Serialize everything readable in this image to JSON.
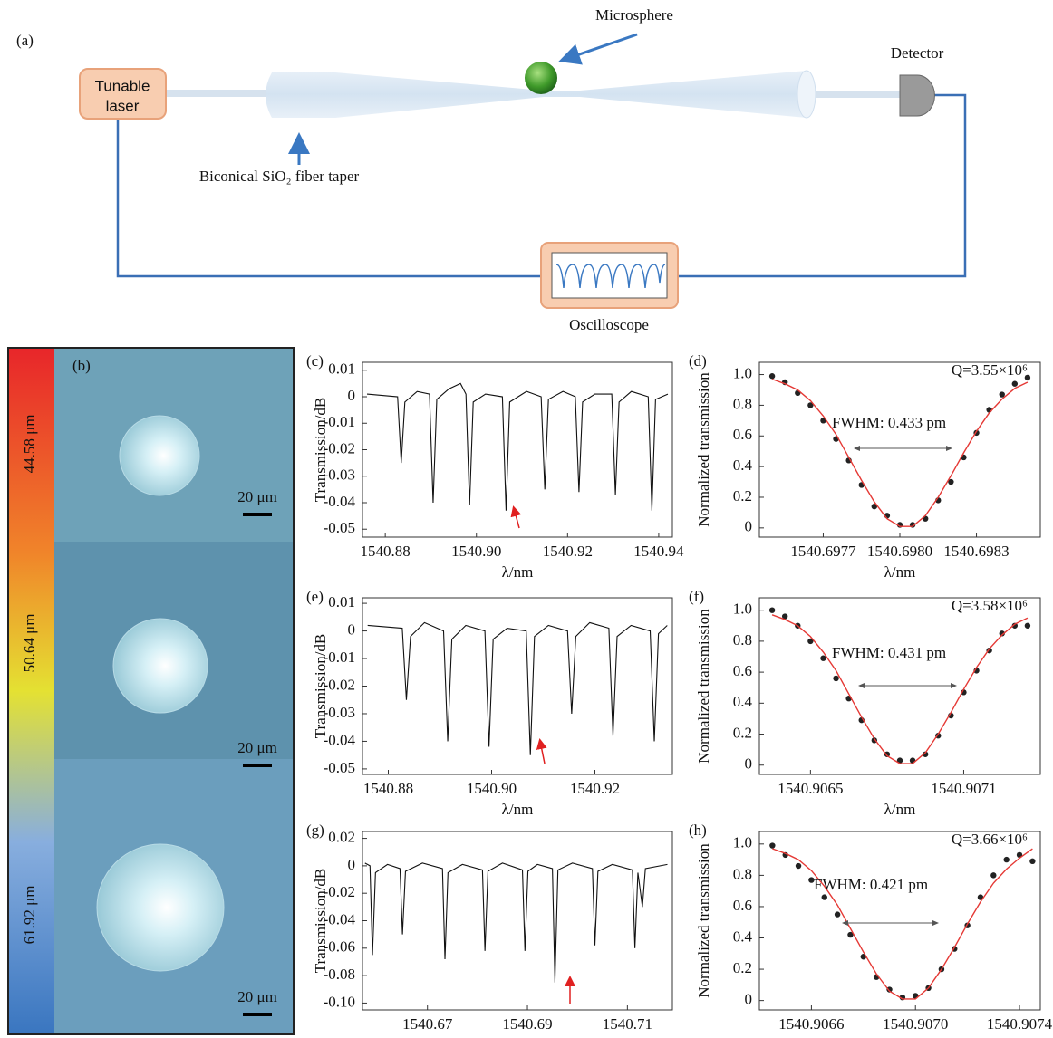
{
  "diagram": {
    "panel_label": "(a)",
    "laser_lines": [
      "Tunable",
      "laser"
    ],
    "microsphere": "Microsphere",
    "detector": "Detector",
    "taper": "Biconical SiO₂ fiber taper",
    "oscilloscope": "Oscilloscope"
  },
  "image_panel": {
    "label": "(b)",
    "diameters": [
      "44.58 μm",
      "50.64 μm",
      "61.92 μm"
    ],
    "scale_bars": [
      "20 μm",
      "20 μm",
      "20 μm"
    ]
  },
  "chart_data": [
    {
      "type": "line",
      "label": "(c)",
      "xlabel": "λ/nm",
      "ylabel": "Transmission/dB",
      "xlim": [
        1540.875,
        1540.943
      ],
      "ylim": [
        -0.053,
        0.013
      ],
      "xticks": [
        1540.88,
        {
          "value": 1540.9,
          "label": "1540.90"
        },
        1540.92,
        1540.94
      ],
      "yticks": [
        0.01,
        0,
        -0.01,
        -0.02,
        -0.03,
        -0.04,
        -0.05
      ],
      "x": [
        1540.876,
        1540.8827,
        1540.8835,
        1540.8843,
        1540.887,
        1540.8897,
        1540.8905,
        1540.8913,
        1540.894,
        1540.8965,
        1540.8977,
        1540.8985,
        1540.8993,
        1540.902,
        1540.9057,
        1540.9065,
        1540.9073,
        1540.911,
        1540.9142,
        1540.915,
        1540.9158,
        1540.919,
        1540.9217,
        1540.9225,
        1540.9233,
        1540.926,
        1540.9297,
        1540.9305,
        1540.9313,
        1540.934,
        1540.9377,
        1540.9385,
        1540.9393,
        1540.942
      ],
      "series": [
        {
          "color": "#111111",
          "values": [
            0.001,
            0.0,
            -0.025,
            -0.002,
            0.002,
            0.001,
            -0.04,
            -0.001,
            0.003,
            0.005,
            0.001,
            -0.041,
            -0.002,
            0.001,
            0.0,
            -0.043,
            -0.002,
            0.002,
            0.0,
            -0.035,
            -0.001,
            0.002,
            0.0,
            -0.036,
            -0.002,
            0.001,
            0.001,
            -0.037,
            -0.002,
            0.002,
            0.0,
            -0.043,
            -0.001,
            0.001
          ]
        }
      ]
    },
    {
      "type": "scatter",
      "label": "(d)",
      "xlabel": "λ/nm",
      "ylabel": "Normalized transmission",
      "q_label": "Q=3.55×10⁶",
      "fwhm_label": "FWHM: 0.433 pm",
      "xlim": [
        1540.69745,
        1540.69855
      ],
      "ylim": [
        -0.06,
        1.08
      ],
      "xticks": [
        1540.6977,
        {
          "value": 1540.698,
          "label": "1540.6980"
        },
        1540.6983
      ],
      "yticks": [
        0,
        0.2,
        0.4,
        0.6,
        0.8,
        {
          "value": 1,
          "label": "1.0"
        }
      ],
      "x": [
        1540.6975,
        1540.69755,
        1540.6976,
        1540.69765,
        1540.6977,
        1540.69775,
        1540.6978,
        1540.69785,
        1540.6979,
        1540.69795,
        1540.698,
        1540.69805,
        1540.6981,
        1540.69815,
        1540.6982,
        1540.69825,
        1540.6983,
        1540.69835,
        1540.6984,
        1540.69845,
        1540.6985
      ],
      "series": [
        {
          "color": "#222222",
          "style": "points",
          "values": [
            0.99,
            0.95,
            0.88,
            0.8,
            0.7,
            0.58,
            0.44,
            0.28,
            0.14,
            0.08,
            0.02,
            0.02,
            0.06,
            0.18,
            0.3,
            0.46,
            0.62,
            0.77,
            0.87,
            0.94,
            0.98
          ]
        },
        {
          "color": "#e53935",
          "style": "line",
          "values": [
            0.97,
            0.94,
            0.9,
            0.83,
            0.73,
            0.61,
            0.46,
            0.31,
            0.17,
            0.06,
            0.01,
            0.01,
            0.08,
            0.2,
            0.34,
            0.49,
            0.63,
            0.75,
            0.84,
            0.91,
            0.95
          ]
        }
      ]
    },
    {
      "type": "line",
      "label": "(e)",
      "xlabel": "λ/nm",
      "ylabel": "Transmission/dB",
      "xlim": [
        1540.875,
        1540.935
      ],
      "ylim": [
        -0.052,
        0.012
      ],
      "xticks": [
        1540.88,
        {
          "value": 1540.9,
          "label": "1540.90"
        },
        1540.92
      ],
      "yticks": [
        0.01,
        0,
        -0.01,
        -0.02,
        -0.03,
        -0.04,
        -0.05
      ],
      "x": [
        1540.876,
        1540.8827,
        1540.8835,
        1540.8843,
        1540.887,
        1540.8907,
        1540.8915,
        1540.8923,
        1540.895,
        1540.8987,
        1540.8995,
        1540.9003,
        1540.903,
        1540.9067,
        1540.9075,
        1540.9083,
        1540.911,
        1540.9147,
        1540.9155,
        1540.9163,
        1540.919,
        1540.9227,
        1540.9235,
        1540.9243,
        1540.927,
        1540.9307,
        1540.9315,
        1540.9323,
        1540.934
      ],
      "series": [
        {
          "color": "#111111",
          "values": [
            0.002,
            0.001,
            -0.025,
            -0.002,
            0.003,
            0.0,
            -0.04,
            -0.003,
            0.002,
            0.0,
            -0.042,
            -0.003,
            0.001,
            0.0,
            -0.045,
            -0.002,
            0.002,
            0.0,
            -0.03,
            -0.002,
            0.003,
            0.001,
            -0.038,
            -0.002,
            0.002,
            0.0,
            -0.04,
            -0.001,
            0.002
          ]
        }
      ]
    },
    {
      "type": "scatter",
      "label": "(f)",
      "xlabel": "λ/nm",
      "ylabel": "Normalized transmission",
      "q_label": "Q=3.58×10⁶",
      "fwhm_label": "FWHM: 0.431 pm",
      "xlim": [
        1540.9063,
        1540.9074
      ],
      "ylim": [
        -0.06,
        1.08
      ],
      "xticks": [
        1540.9065,
        1540.9071
      ],
      "yticks": [
        0,
        0.2,
        0.4,
        0.6,
        0.8,
        {
          "value": 1,
          "label": "1.0"
        }
      ],
      "x": [
        1540.90635,
        1540.9064,
        1540.90645,
        1540.9065,
        1540.90655,
        1540.9066,
        1540.90665,
        1540.9067,
        1540.90675,
        1540.9068,
        1540.90685,
        1540.9069,
        1540.90695,
        1540.907,
        1540.90705,
        1540.9071,
        1540.90715,
        1540.9072,
        1540.90725,
        1540.9073,
        1540.90735
      ],
      "series": [
        {
          "color": "#222222",
          "style": "points",
          "values": [
            1.0,
            0.96,
            0.9,
            0.8,
            0.69,
            0.56,
            0.43,
            0.29,
            0.16,
            0.07,
            0.03,
            0.03,
            0.07,
            0.19,
            0.32,
            0.47,
            0.61,
            0.74,
            0.85,
            0.9,
            0.9
          ]
        },
        {
          "color": "#e53935",
          "style": "line",
          "values": [
            0.97,
            0.94,
            0.9,
            0.83,
            0.73,
            0.61,
            0.46,
            0.31,
            0.17,
            0.06,
            0.01,
            0.01,
            0.08,
            0.2,
            0.34,
            0.49,
            0.63,
            0.75,
            0.84,
            0.91,
            0.95
          ]
        }
      ]
    },
    {
      "type": "line",
      "label": "(g)",
      "ylabel": "Transmission/dB",
      "xlim": [
        1540.657,
        1540.719
      ],
      "ylim": [
        -0.105,
        0.025
      ],
      "xticks": [
        1540.67,
        1540.69,
        1540.71
      ],
      "yticks": [
        0.02,
        0,
        -0.02,
        -0.04,
        -0.06,
        -0.08,
        {
          "value": -0.1,
          "label": "-0.10"
        }
      ],
      "x": [
        1540.6575,
        1540.6585,
        1540.659,
        1540.6596,
        1540.662,
        1540.6645,
        1540.665,
        1540.6656,
        1540.669,
        1540.673,
        1540.6735,
        1540.6741,
        1540.677,
        1540.681,
        1540.6815,
        1540.6821,
        1540.685,
        1540.689,
        1540.6895,
        1540.6901,
        1540.692,
        1540.695,
        1540.6955,
        1540.6961,
        1540.699,
        1540.703,
        1540.7035,
        1540.7041,
        1540.707,
        1540.711,
        1540.7115,
        1540.7121,
        1540.713,
        1540.7136,
        1540.718
      ],
      "series": [
        {
          "color": "#111111",
          "values": [
            0.002,
            0.0,
            -0.065,
            -0.005,
            0.001,
            -0.002,
            -0.05,
            -0.004,
            0.002,
            -0.002,
            -0.068,
            -0.005,
            0.001,
            -0.003,
            -0.062,
            -0.004,
            0.002,
            -0.003,
            -0.062,
            -0.004,
            0.001,
            -0.002,
            -0.085,
            -0.003,
            0.002,
            -0.002,
            -0.058,
            -0.004,
            0.001,
            -0.003,
            -0.06,
            -0.005,
            -0.03,
            -0.002,
            0.001
          ]
        }
      ]
    },
    {
      "type": "scatter",
      "label": "(h)",
      "ylabel": "Normalized transmission",
      "q_label": "Q=3.66×10⁶",
      "fwhm_label": "FWHM: 0.421 pm",
      "xlim": [
        1540.9064,
        1540.90748
      ],
      "ylim": [
        -0.06,
        1.08
      ],
      "xticks": [
        1540.9066,
        {
          "value": 1540.907,
          "label": "1540.9070"
        },
        1540.9074
      ],
      "yticks": [
        0,
        0.2,
        0.4,
        0.6,
        0.8,
        {
          "value": 1,
          "label": "1.0"
        }
      ],
      "x": [
        1540.90645,
        1540.9065,
        1540.90655,
        1540.9066,
        1540.90665,
        1540.9067,
        1540.90675,
        1540.9068,
        1540.90685,
        1540.9069,
        1540.90695,
        1540.907,
        1540.90705,
        1540.9071,
        1540.90715,
        1540.9072,
        1540.90725,
        1540.9073,
        1540.90735,
        1540.9074,
        1540.90745
      ],
      "series": [
        {
          "color": "#222222",
          "style": "points",
          "values": [
            0.99,
            0.93,
            0.86,
            0.77,
            0.66,
            0.55,
            0.42,
            0.28,
            0.15,
            0.07,
            0.02,
            0.03,
            0.08,
            0.2,
            0.33,
            0.48,
            0.66,
            0.8,
            0.9,
            0.93,
            0.89
          ]
        },
        {
          "color": "#e53935",
          "style": "line",
          "values": [
            0.97,
            0.94,
            0.9,
            0.83,
            0.73,
            0.61,
            0.46,
            0.31,
            0.17,
            0.06,
            0.01,
            0.01,
            0.08,
            0.2,
            0.34,
            0.49,
            0.63,
            0.75,
            0.84,
            0.91,
            0.97
          ]
        }
      ]
    }
  ]
}
